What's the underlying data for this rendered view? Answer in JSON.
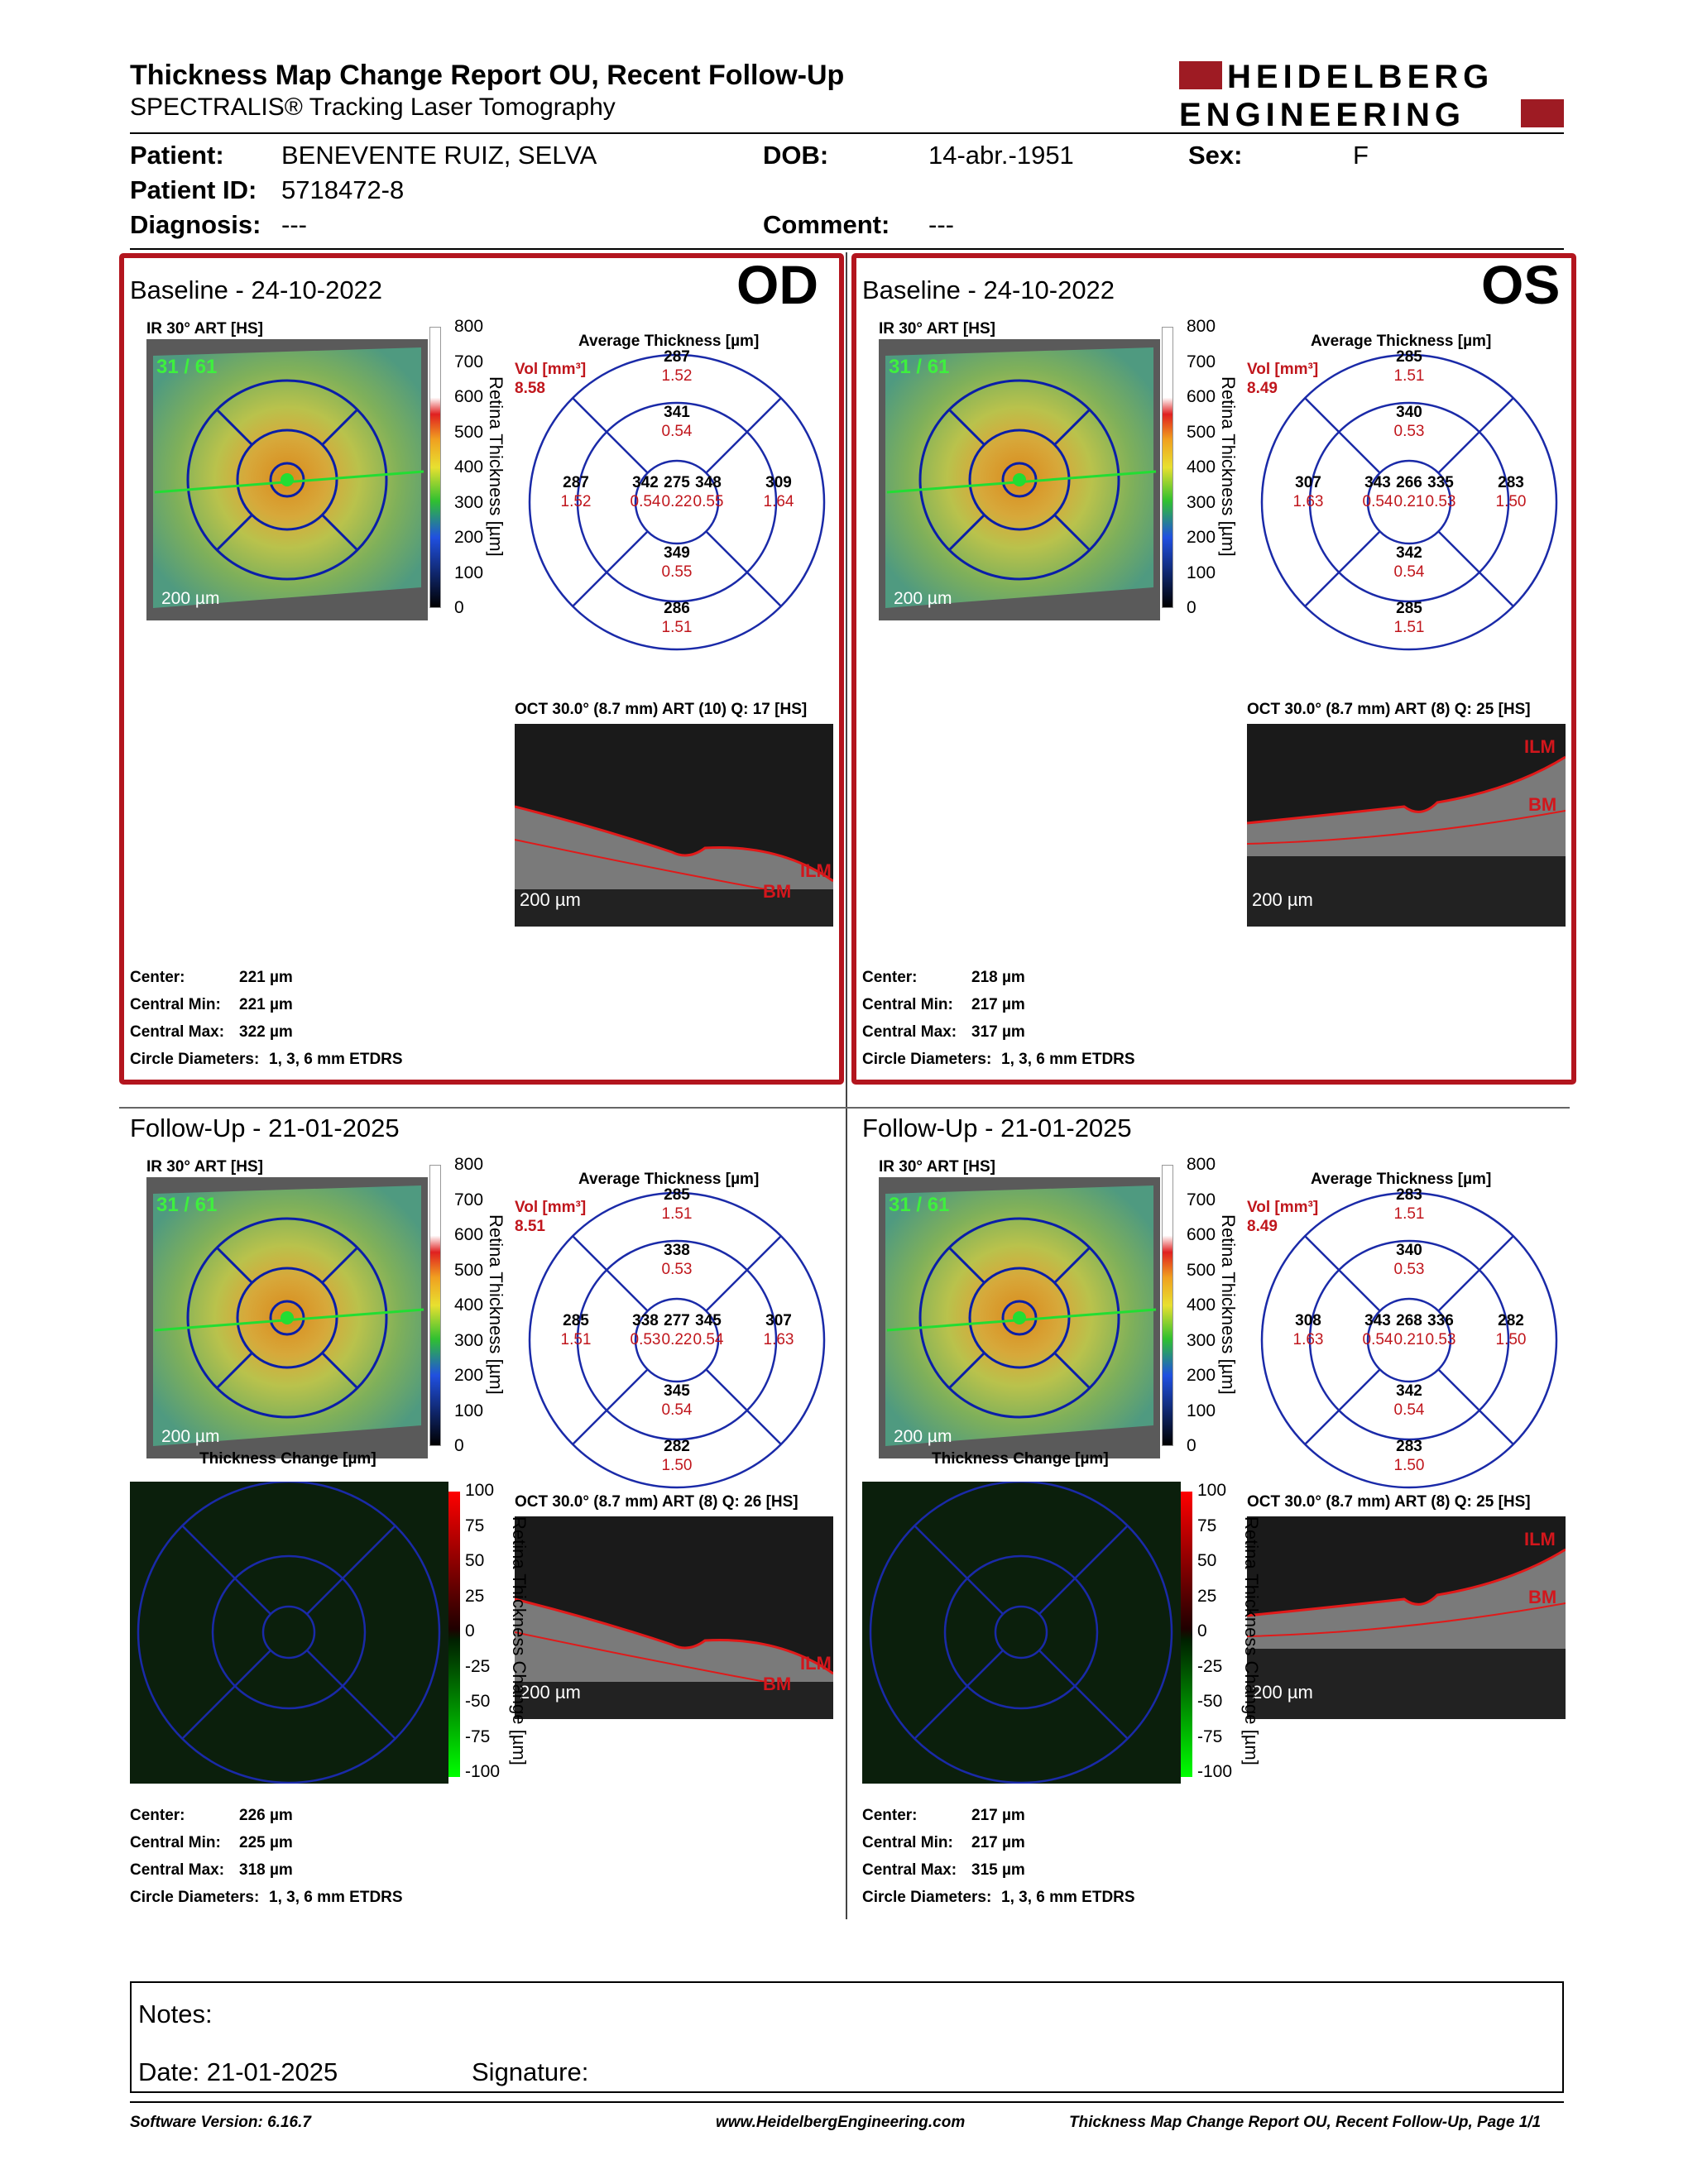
{
  "header": {
    "title": "Thickness Map Change Report OU, Recent Follow-Up",
    "subtitle": "SPECTRALIS® Tracking Laser Tomography",
    "logo_line1": "HEIDELBERG",
    "logo_line2": "ENGINEERING",
    "brand_color": "#9e1b23"
  },
  "patient": {
    "name_label": "Patient:",
    "name": "BENEVENTE RUIZ, SELVA",
    "dob_label": "DOB:",
    "dob": "14-abr.-1951",
    "sex_label": "Sex:",
    "sex": "F",
    "id_label": "Patient ID:",
    "id": "5718472-8",
    "diagnosis_label": "Diagnosis:",
    "diagnosis": "---",
    "comment_label": "Comment:",
    "comment": "---"
  },
  "colorbar_ticks": [
    "800",
    "700",
    "600",
    "500",
    "400",
    "300",
    "200",
    "100",
    "0"
  ],
  "change_ticks": [
    "100",
    "75",
    "50",
    "25",
    "0",
    "-25",
    "-50",
    "-75",
    "-100"
  ],
  "retina_axis": "Retina Thickness [µm]",
  "change_axis": "Retina Thickness Change [µm]",
  "ir_label": "IR 30° ART [HS]",
  "scale": "200 µm",
  "avg_title": "Average Thickness [µm]",
  "change_title": "Thickness Change [µm]",
  "vol_label": "Vol [mm³]",
  "stat_labels": {
    "center": "Center:",
    "cmin": "Central Min:",
    "cmax": "Central Max:",
    "circ": "Circle Diameters:"
  },
  "circle_value": "1, 3, 6 mm ETDRS",
  "ilm": "ILM",
  "bm": "BM",
  "od_label": "OD",
  "os_label": "OS",
  "panels": {
    "od_base": {
      "heading": "Baseline - 24-10-2022",
      "vol": "8.58",
      "oct": "OCT 30.0° (8.7 mm) ART (10) Q: 17 [HS]",
      "outer_top": [
        "287",
        "1.52"
      ],
      "inner_top": [
        "341",
        "0.54"
      ],
      "outer_left": [
        "287",
        "1.52"
      ],
      "inner_left": [
        "342",
        "0.54"
      ],
      "center": [
        "275",
        "0.22"
      ],
      "inner_right": [
        "348",
        "0.55"
      ],
      "outer_right": [
        "309",
        "1.64"
      ],
      "inner_bottom": [
        "349",
        "0.55"
      ],
      "outer_bottom": [
        "286",
        "1.51"
      ],
      "s_center": "221 µm",
      "s_min": "221 µm",
      "s_max": "322 µm",
      "frame": "31 / 61"
    },
    "os_base": {
      "heading": "Baseline - 24-10-2022",
      "vol": "8.49",
      "oct": "OCT 30.0° (8.7 mm) ART (8) Q: 25 [HS]",
      "outer_top": [
        "285",
        "1.51"
      ],
      "inner_top": [
        "340",
        "0.53"
      ],
      "outer_left": [
        "307",
        "1.63"
      ],
      "inner_left": [
        "343",
        "0.54"
      ],
      "center": [
        "266",
        "0.21"
      ],
      "inner_right": [
        "335",
        "0.53"
      ],
      "outer_right": [
        "283",
        "1.50"
      ],
      "inner_bottom": [
        "342",
        "0.54"
      ],
      "outer_bottom": [
        "285",
        "1.51"
      ],
      "s_center": "218 µm",
      "s_min": "217 µm",
      "s_max": "317 µm",
      "frame": "31 / 61"
    },
    "od_fu": {
      "heading": "Follow-Up - 21-01-2025",
      "vol": "8.51",
      "oct": "OCT 30.0° (8.7 mm) ART (8) Q: 26 [HS]",
      "outer_top": [
        "285",
        "1.51"
      ],
      "inner_top": [
        "338",
        "0.53"
      ],
      "outer_left": [
        "285",
        "1.51"
      ],
      "inner_left": [
        "338",
        "0.53"
      ],
      "center": [
        "277",
        "0.22"
      ],
      "inner_right": [
        "345",
        "0.54"
      ],
      "outer_right": [
        "307",
        "1.63"
      ],
      "inner_bottom": [
        "345",
        "0.54"
      ],
      "outer_bottom": [
        "282",
        "1.50"
      ],
      "s_center": "226 µm",
      "s_min": "225 µm",
      "s_max": "318 µm",
      "frame": "31 / 61"
    },
    "os_fu": {
      "heading": "Follow-Up - 21-01-2025",
      "vol": "8.49",
      "oct": "OCT 30.0° (8.7 mm) ART (8) Q: 25 [HS]",
      "outer_top": [
        "283",
        "1.51"
      ],
      "inner_top": [
        "340",
        "0.53"
      ],
      "outer_left": [
        "308",
        "1.63"
      ],
      "inner_left": [
        "343",
        "0.54"
      ],
      "center": [
        "268",
        "0.21"
      ],
      "inner_right": [
        "336",
        "0.53"
      ],
      "outer_right": [
        "282",
        "1.50"
      ],
      "inner_bottom": [
        "342",
        "0.54"
      ],
      "outer_bottom": [
        "283",
        "1.50"
      ],
      "s_center": "217 µm",
      "s_min": "217 µm",
      "s_max": "315 µm",
      "frame": "31 / 61"
    }
  },
  "notes": {
    "notes_label": "Notes:",
    "date_label": "Date: 21-01-2025",
    "signature_label": "Signature:"
  },
  "footer": {
    "software": "Software Version: 6.16.7",
    "url": "www.HeidelbergEngineering.com",
    "page": "Thickness Map Change Report OU, Recent Follow-Up, Page 1/1"
  }
}
